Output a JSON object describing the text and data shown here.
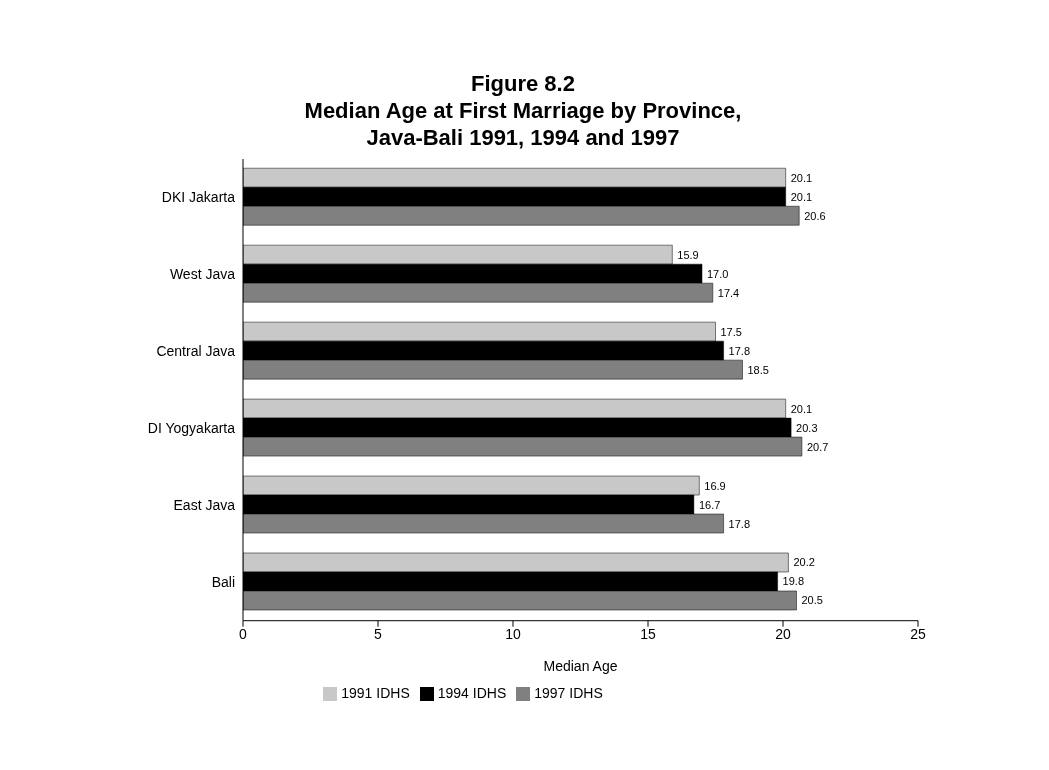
{
  "chart_data": {
    "type": "bar",
    "orientation": "horizontal",
    "title": "Figure 8.2\nMedian Age at First Marriage by Province,\nJava-Bali 1991, 1994 and 1997",
    "xlabel": "Median Age",
    "categories": [
      "DKI Jakarta",
      "West Java",
      "Central Java",
      "DI Yogyakarta",
      "East Java",
      "Bali"
    ],
    "series": [
      {
        "name": "1991 IDHS",
        "color": "#c8c8c8",
        "values": [
          20.1,
          15.9,
          17.5,
          20.1,
          16.9,
          20.2
        ],
        "value_labels": [
          "20.1",
          "15.9",
          "17.5",
          "20.1",
          "16.9",
          "20.2"
        ]
      },
      {
        "name": "1994 IDHS",
        "color": "#000000",
        "values": [
          20.1,
          17.0,
          17.8,
          20.3,
          16.7,
          19.8
        ],
        "value_labels": [
          "20.1",
          "17.0",
          "17.8",
          "20.3",
          "16.7",
          "19.8"
        ]
      },
      {
        "name": "1997 IDHS",
        "color": "#808080",
        "values": [
          20.6,
          17.4,
          18.5,
          20.7,
          17.8,
          20.5
        ],
        "value_labels": [
          "20.6",
          "17.4",
          "18.5",
          "20.7",
          "17.8",
          "20.5"
        ]
      }
    ],
    "xlim": [
      0,
      25
    ],
    "xticks": [
      0,
      5,
      10,
      15,
      20,
      25
    ],
    "grid": false,
    "legend": "bottom"
  }
}
